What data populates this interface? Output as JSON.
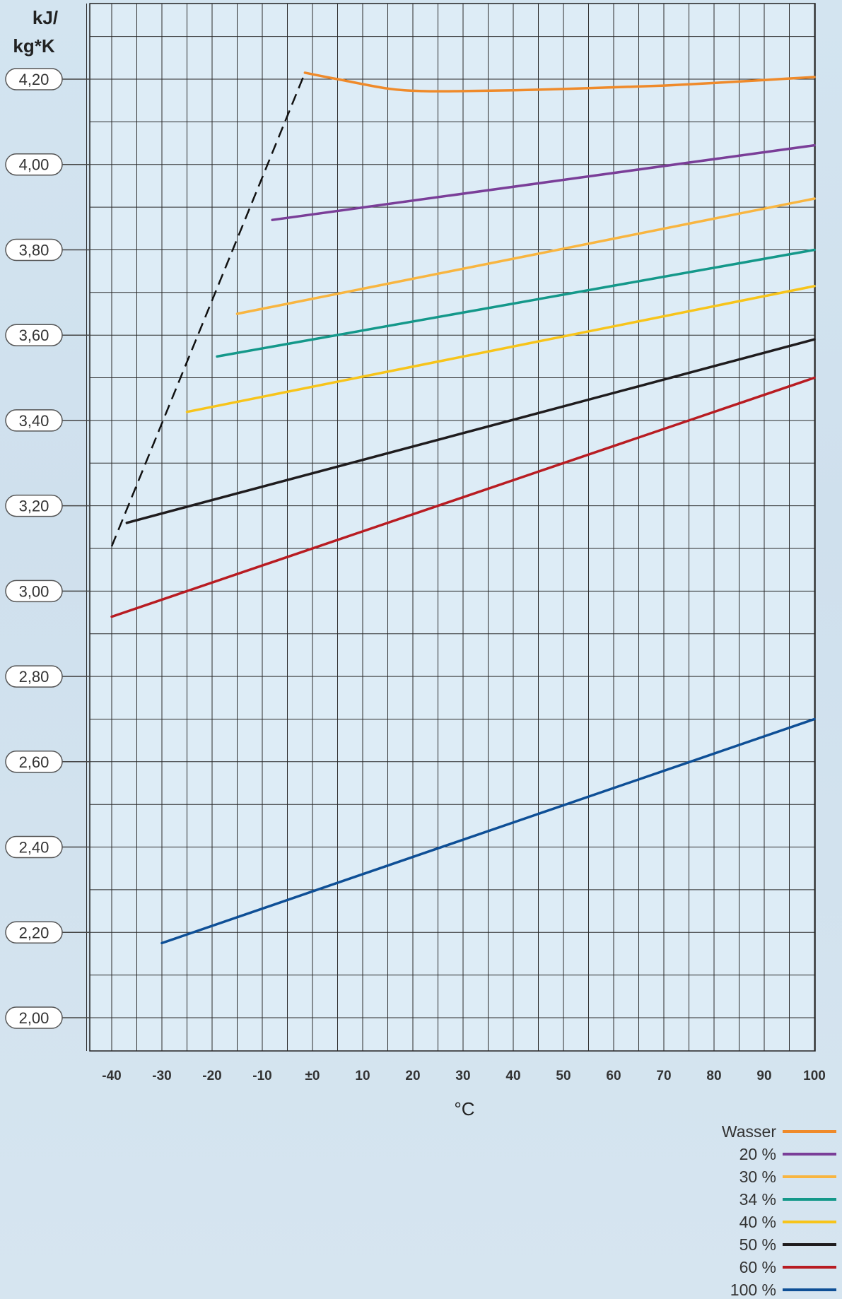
{
  "chart_data": {
    "type": "line",
    "title": "",
    "ylabel_line1": "kJ/",
    "ylabel_line2": "kg*K",
    "xlabel": "°C",
    "xlim": [
      -45,
      100
    ],
    "ylim": [
      1.96,
      4.38
    ],
    "grid": true,
    "legend_position": "bottom-right",
    "x_ticks": [
      {
        "value": -40,
        "label": "-40"
      },
      {
        "value": -30,
        "label": "-30"
      },
      {
        "value": -20,
        "label": "-20"
      },
      {
        "value": -10,
        "label": "-10"
      },
      {
        "value": 0,
        "label": "±0"
      },
      {
        "value": 10,
        "label": "10"
      },
      {
        "value": 20,
        "label": "20"
      },
      {
        "value": 30,
        "label": "30"
      },
      {
        "value": 40,
        "label": "40"
      },
      {
        "value": 50,
        "label": "50"
      },
      {
        "value": 60,
        "label": "60"
      },
      {
        "value": 70,
        "label": "70"
      },
      {
        "value": 80,
        "label": "80"
      },
      {
        "value": 90,
        "label": "90"
      },
      {
        "value": 100,
        "label": "100"
      }
    ],
    "y_ticks": [
      {
        "value": 4.2,
        "label": "4,20"
      },
      {
        "value": 4.0,
        "label": "4,00"
      },
      {
        "value": 3.8,
        "label": "3,80"
      },
      {
        "value": 3.6,
        "label": "3,60"
      },
      {
        "value": 3.4,
        "label": "3,40"
      },
      {
        "value": 3.2,
        "label": "3,20"
      },
      {
        "value": 3.0,
        "label": "3,00"
      },
      {
        "value": 2.8,
        "label": "2,80"
      },
      {
        "value": 2.6,
        "label": "2,60"
      },
      {
        "value": 2.4,
        "label": "2,40"
      },
      {
        "value": 2.2,
        "label": "2,20"
      },
      {
        "value": 2.0,
        "label": "2,00"
      }
    ],
    "series": [
      {
        "name": "Wasser",
        "color": "#ef8a2a",
        "smooth": true,
        "x": [
          -1.5,
          5,
          15,
          22,
          30,
          40,
          50,
          60,
          70,
          80,
          90,
          100
        ],
        "y": [
          4.215,
          4.2,
          4.178,
          4.172,
          4.172,
          4.174,
          4.177,
          4.181,
          4.185,
          4.191,
          4.198,
          4.205
        ]
      },
      {
        "name": "20 %",
        "color": "#7a3e98",
        "x": [
          -8,
          100
        ],
        "y": [
          3.87,
          4.045
        ]
      },
      {
        "name": "30 %",
        "color": "#f8b540",
        "x": [
          -15,
          100
        ],
        "y": [
          3.65,
          3.92
        ]
      },
      {
        "name": "34 %",
        "color": "#14988a",
        "x": [
          -19,
          100
        ],
        "y": [
          3.55,
          3.8
        ]
      },
      {
        "name": "40 %",
        "color": "#f7c41a",
        "x": [
          -25,
          100
        ],
        "y": [
          3.42,
          3.715
        ]
      },
      {
        "name": "50 %",
        "color": "#1f1c1e",
        "x": [
          -37,
          100
        ],
        "y": [
          3.16,
          3.59
        ]
      },
      {
        "name": "60 %",
        "color": "#b81c22",
        "x": [
          -40,
          100
        ],
        "y": [
          2.94,
          3.5
        ]
      },
      {
        "name": "100 %",
        "color": "#0e4f96",
        "x": [
          -30,
          100
        ],
        "y": [
          2.175,
          2.7
        ]
      }
    ],
    "boundary_line": {
      "style": "dashed",
      "color": "#111111",
      "x": [
        -40,
        -1.5
      ],
      "y": [
        3.105,
        4.215
      ]
    }
  }
}
